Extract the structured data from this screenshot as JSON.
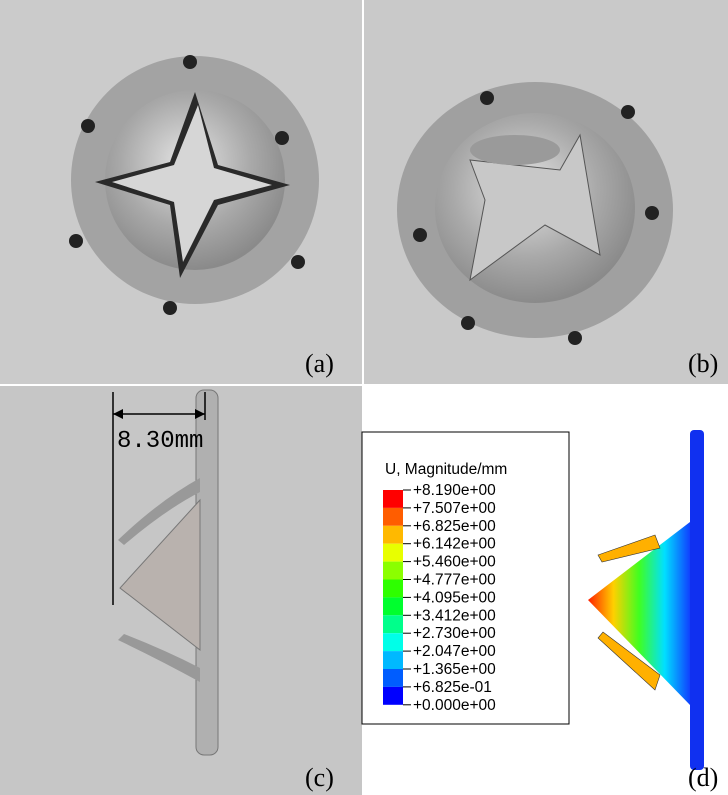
{
  "panels": [
    {
      "label": "(a)"
    },
    {
      "label": "(b)"
    },
    {
      "label": "(c)",
      "dimension": "8.30mm"
    },
    {
      "label": "(d)",
      "legend": {
        "title": "U, Magnitude/mm",
        "values": [
          "+8.190e+00",
          "+7.507e+00",
          "+6.825e+00",
          "+6.142e+00",
          "+5.460e+00",
          "+4.777e+00",
          "+4.095e+00",
          "+3.412e+00",
          "+2.730e+00",
          "+2.047e+00",
          "+1.365e+00",
          "+6.825e-01",
          "+0.000e+00"
        ],
        "colors": [
          "#ff0000",
          "#ff5d00",
          "#ffb900",
          "#e8ff00",
          "#8bff00",
          "#2eff00",
          "#00ff2e",
          "#00ff8b",
          "#00ffe8",
          "#00b9ff",
          "#005dff",
          "#0000ff"
        ]
      }
    }
  ]
}
